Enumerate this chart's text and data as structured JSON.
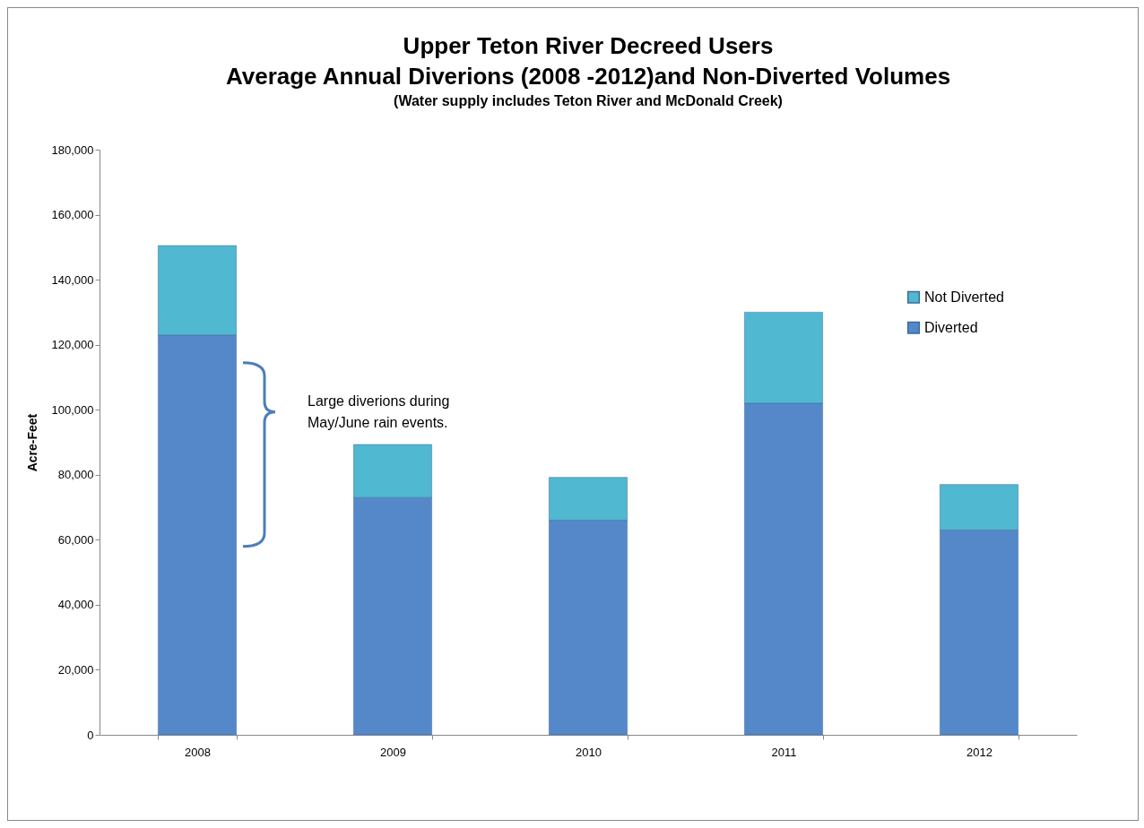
{
  "chart_data": {
    "type": "bar",
    "title": "Upper Teton River Decreed Users\nAverage Annual Diverions (2008 -2012)and Non-Diverted Volumes",
    "subtitle": "(Water supply includes Teton River and McDonald Creek)",
    "ylabel": "Acre-Feet",
    "categories": [
      "2008",
      "2009",
      "2010",
      "2011",
      "2012"
    ],
    "series": [
      {
        "name": "Diverted",
        "color": "#5588c8",
        "values": [
          123000,
          73000,
          66000,
          102000,
          63000
        ]
      },
      {
        "name": "Not Diverted",
        "color": "#50b8d0",
        "values": [
          27500,
          16300,
          13200,
          28000,
          14000
        ]
      }
    ],
    "stacked": true,
    "ylim": [
      0,
      180000
    ],
    "yticks": [
      0,
      {
        "value": 20000,
        "label": "20,000"
      },
      {
        "value": 40000,
        "label": "40,000"
      },
      {
        "value": 60000,
        "label": "60,000"
      },
      {
        "value": 80000,
        "label": "80,000"
      },
      {
        "value": 100000,
        "label": "100,000"
      },
      {
        "value": 120000,
        "label": "120,000"
      },
      {
        "value": 140000,
        "label": "140,000"
      },
      {
        "value": 160000,
        "label": "160,000"
      },
      {
        "value": 180000,
        "label": "180,000"
      }
    ],
    "grid": false,
    "legend": "right",
    "annotations": [
      "Large diverions during May/June rain events."
    ]
  }
}
